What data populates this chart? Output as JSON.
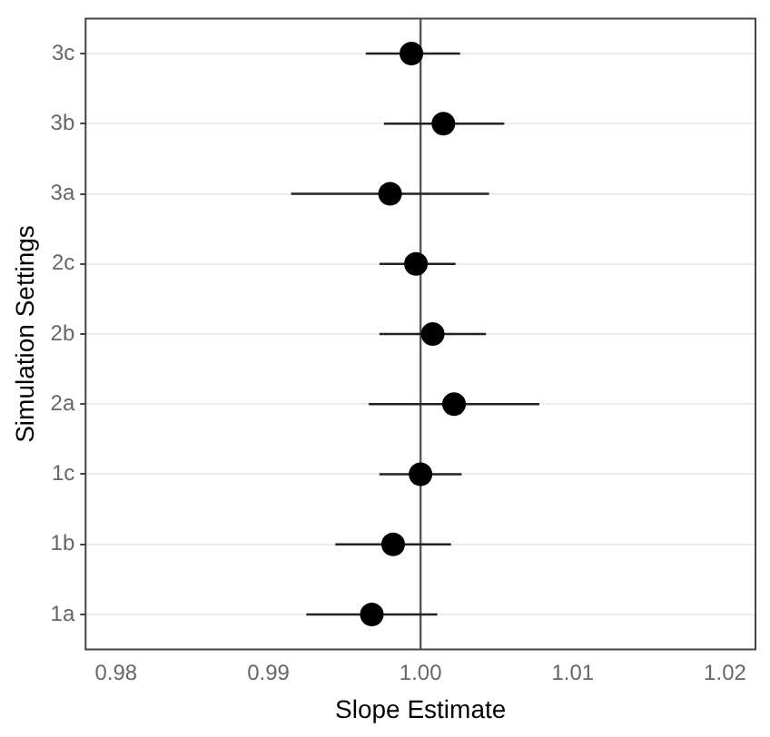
{
  "chart_data": {
    "type": "scatter",
    "orientation": "horizontal",
    "xlabel": "Slope Estimate",
    "ylabel": "Simulation Settings",
    "categories": [
      "3c",
      "3b",
      "3a",
      "2c",
      "2b",
      "2a",
      "1c",
      "1b",
      "1a"
    ],
    "series": [
      {
        "color": "#000000",
        "values": [
          0.9994,
          1.0015,
          0.998,
          0.9997,
          1.0008,
          1.0022,
          1.0,
          0.9982,
          0.9968
        ],
        "errors": [
          [
            0.9964,
            1.0026
          ],
          [
            0.9976,
            1.0055
          ],
          [
            0.9915,
            1.0045
          ],
          [
            0.9973,
            1.0023
          ],
          [
            0.9973,
            1.0043
          ],
          [
            0.9966,
            1.0078
          ],
          [
            0.9973,
            1.0027
          ],
          [
            0.9944,
            1.002
          ],
          [
            0.9925,
            1.0011
          ]
        ]
      }
    ],
    "xlim": [
      0.978,
      1.022
    ],
    "xticks": [
      {
        "value": 0.98,
        "label": "0.98"
      },
      {
        "value": 0.99,
        "label": "0.99"
      },
      {
        "value": 1.0,
        "label": "1.00"
      },
      {
        "value": 1.01,
        "label": "1.01"
      },
      {
        "value": 1.02,
        "label": "1.02"
      }
    ],
    "ref_lines": [
      {
        "axis": "x",
        "value": 1.0,
        "color": "#555555"
      }
    ],
    "grid": "y",
    "marker": "circle",
    "legend": false
  }
}
